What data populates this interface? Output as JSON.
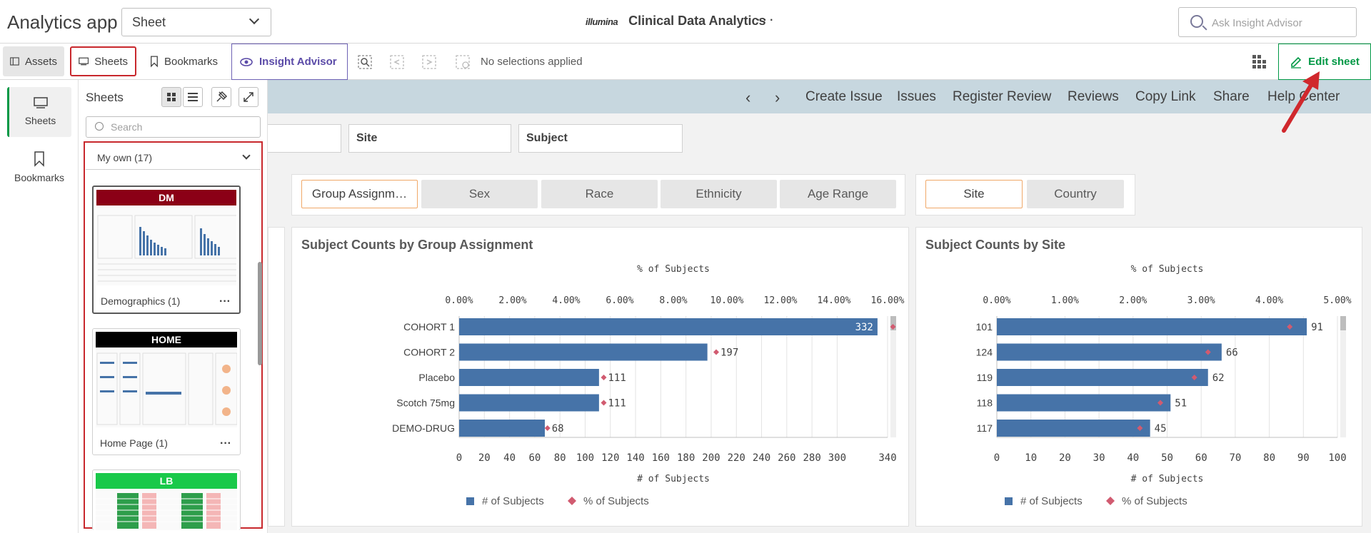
{
  "app_title": "Analytics app",
  "sheet_select": "Sheet",
  "center": {
    "logo": "illumina",
    "title": "Clinical Data Analytics",
    "more": "···"
  },
  "ask_placeholder": "Ask Insight Advisor",
  "toolbar": {
    "assets": "Assets",
    "sheets": "Sheets",
    "bookmarks": "Bookmarks",
    "insight": "Insight Advisor",
    "no_selections": "No selections applied",
    "edit_sheet": "Edit sheet"
  },
  "nav": {
    "create_issue": "Create Issue",
    "issues": "Issues",
    "register_review": "Register Review",
    "reviews": "Reviews",
    "copy_link": "Copy Link",
    "share": "Share",
    "help_center": "Help Center"
  },
  "rail": {
    "sheets": "Sheets",
    "bookmarks": "Bookmarks"
  },
  "panel": {
    "title": "Sheets",
    "search_placeholder": "Search",
    "group": "My own (17)",
    "cards": [
      {
        "header": "DM",
        "label": "Demographics (1)",
        "color": "#8b0016"
      },
      {
        "header": "HOME",
        "label": "Home Page (1)",
        "color": "#000000"
      },
      {
        "header": "LB",
        "label": "",
        "color": "#19c94a"
      }
    ]
  },
  "filters": {
    "site": "Site",
    "subject": "Subject"
  },
  "buttons_left": [
    "Group Assignm…",
    "Sex",
    "Race",
    "Ethnicity",
    "Age Range"
  ],
  "buttons_right": [
    "Site",
    "Country"
  ],
  "colors": {
    "bar": "#4673a8",
    "marker": "#d15b70",
    "accent": "#009845",
    "highlight": "#c8282d"
  },
  "chart_data": [
    {
      "type": "bar",
      "title": "Subject Counts by Group Assignment",
      "top_axis_label": "% of Subjects",
      "bottom_axis_label": "# of Subjects",
      "categories": [
        "COHORT 1",
        "COHORT 2",
        "Placebo",
        "Scotch 75mg",
        "DEMO-DRUG"
      ],
      "series": [
        {
          "name": "# of Subjects",
          "values": [
            332,
            197,
            111,
            111,
            68
          ]
        },
        {
          "name": "% of Subjects",
          "values": [
            16.2,
            9.6,
            5.4,
            5.4,
            3.3
          ]
        }
      ],
      "x_ticks": [
        "0",
        "20",
        "40",
        "60",
        "80",
        "100",
        "120",
        "140",
        "160",
        "180",
        "200",
        "220",
        "240",
        "260",
        "280",
        "300",
        "340"
      ],
      "top_ticks": [
        "0.00%",
        "2.00%",
        "4.00%",
        "6.00%",
        "8.00%",
        "10.00%",
        "12.00%",
        "14.00%",
        "16.00%"
      ],
      "xlim": [
        0,
        340
      ],
      "top_lim": [
        0,
        16
      ]
    },
    {
      "type": "bar",
      "title": "Subject Counts by Site",
      "top_axis_label": "% of Subjects",
      "bottom_axis_label": "# of Subjects",
      "categories": [
        "101",
        "124",
        "119",
        "118",
        "117"
      ],
      "series": [
        {
          "name": "# of Subjects",
          "values": [
            91,
            66,
            62,
            51,
            45
          ]
        },
        {
          "name": "% of Subjects",
          "values": [
            4.3,
            3.1,
            2.9,
            2.4,
            2.1
          ]
        }
      ],
      "x_ticks": [
        "0",
        "10",
        "20",
        "30",
        "40",
        "50",
        "60",
        "70",
        "80",
        "90",
        "100"
      ],
      "top_ticks": [
        "0.00%",
        "1.00%",
        "2.00%",
        "3.00%",
        "4.00%",
        "5.00%"
      ],
      "xlim": [
        0,
        100
      ],
      "top_lim": [
        0,
        5
      ]
    }
  ]
}
